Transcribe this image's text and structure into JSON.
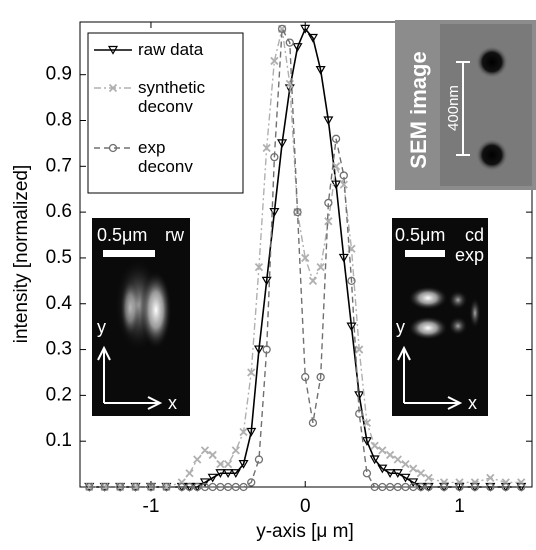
{
  "chart_data": {
    "type": "line",
    "xlabel": "y-axis [μ m]",
    "ylabel": "intensity [normalized]",
    "x": [
      -1.4,
      -1.3,
      -1.2,
      -1.1,
      -1.0,
      -0.9,
      -0.8,
      -0.75,
      -0.7,
      -0.65,
      -0.6,
      -0.55,
      -0.5,
      -0.45,
      -0.4,
      -0.35,
      -0.3,
      -0.25,
      -0.2,
      -0.15,
      -0.1,
      -0.05,
      0,
      0.05,
      0.1,
      0.15,
      0.2,
      0.25,
      0.3,
      0.35,
      0.4,
      0.45,
      0.5,
      0.55,
      0.6,
      0.65,
      0.7,
      0.75,
      0.8,
      0.9,
      1.0,
      1.1,
      1.2,
      1.3,
      1.4
    ],
    "series": [
      {
        "name": "raw data",
        "color": "#000000",
        "marker": "triangle-down",
        "dash": "solid",
        "values": [
          0,
          0,
          0,
          0,
          0,
          0,
          0,
          0,
          0,
          0.01,
          0.02,
          0.03,
          0.03,
          0.03,
          0.05,
          0.12,
          0.3,
          0.45,
          0.6,
          0.75,
          0.87,
          0.96,
          1.0,
          0.98,
          0.91,
          0.8,
          0.66,
          0.5,
          0.35,
          0.2,
          0.1,
          0.06,
          0.04,
          0.03,
          0.03,
          0.02,
          0.01,
          0,
          0,
          0,
          0,
          0,
          0,
          0,
          0
        ]
      },
      {
        "name": "synthetic deconv",
        "color": "#b0b0b0",
        "marker": "x",
        "dash": "dashdot",
        "values": [
          0,
          0,
          0,
          0,
          0,
          0,
          0.01,
          0.03,
          0.06,
          0.08,
          0.07,
          0.05,
          0.05,
          0.08,
          0.12,
          0.25,
          0.48,
          0.74,
          0.93,
          1.0,
          0.88,
          0.6,
          0.5,
          0.45,
          0.48,
          0.58,
          0.7,
          0.66,
          0.52,
          0.3,
          0.14,
          0.09,
          0.08,
          0.07,
          0.06,
          0.05,
          0.04,
          0.03,
          0.02,
          0.01,
          0.01,
          0.01,
          0.02,
          0.01,
          0.01
        ]
      },
      {
        "name": "exp deconv",
        "color": "#707070",
        "marker": "circle",
        "dash": "dash",
        "values": [
          0,
          0,
          0,
          0,
          0,
          0,
          0,
          0,
          0,
          0,
          0,
          0,
          0,
          0,
          0,
          0.01,
          0.06,
          0.3,
          0.72,
          1.0,
          0.97,
          0.6,
          0.24,
          0.14,
          0.24,
          0.62,
          0.76,
          0.68,
          0.45,
          0.16,
          0.03,
          0,
          0,
          0,
          0,
          0,
          0,
          0,
          0,
          0,
          0,
          0,
          0,
          0,
          0
        ]
      }
    ],
    "xlim": [
      -1.46,
      1.47
    ],
    "ylim": [
      0,
      1.015
    ],
    "xticks": [
      -1,
      0,
      1
    ],
    "yticks": [
      0.1,
      0.2,
      0.3,
      0.4,
      0.5,
      0.6,
      0.7,
      0.8,
      0.9
    ],
    "grid": false,
    "legend": "upper left",
    "insets": [
      {
        "scale_bar": "0.5μm",
        "tag": "rw",
        "axis_y": "y",
        "axis_x": "x"
      },
      {
        "scale_bar": "0.5μm",
        "tag": "cd",
        "tag2": "exp",
        "axis_y": "y",
        "axis_x": "x"
      }
    ],
    "sem": {
      "label": "SEM image",
      "scale_bar": "400nm"
    }
  }
}
